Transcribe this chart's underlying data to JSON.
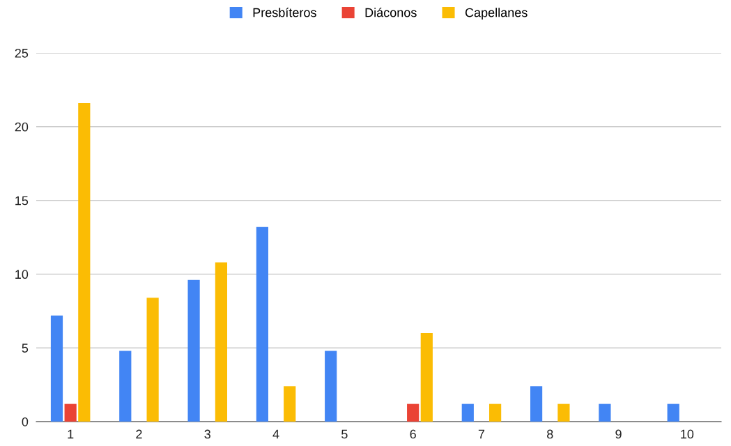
{
  "chart_data": {
    "type": "bar",
    "categories": [
      "1",
      "2",
      "3",
      "4",
      "5",
      "6",
      "7",
      "8",
      "9",
      "10"
    ],
    "series": [
      {
        "name": "Presbíteros",
        "color": "#4285f4",
        "values": [
          7.2,
          4.8,
          9.6,
          13.2,
          4.8,
          null,
          1.2,
          2.4,
          1.2,
          1.2
        ]
      },
      {
        "name": "Diáconos",
        "color": "#ea4335",
        "values": [
          1.2,
          null,
          null,
          null,
          null,
          1.2,
          null,
          null,
          null,
          null
        ]
      },
      {
        "name": "Capellanes",
        "color": "#fbbc04",
        "values": [
          21.6,
          8.4,
          10.8,
          2.4,
          null,
          6.0,
          1.2,
          1.2,
          null,
          null
        ]
      }
    ],
    "ylim": [
      0,
      25
    ],
    "yticks": [
      0,
      5,
      10,
      15,
      20,
      25
    ],
    "grid": "y",
    "legend": "top"
  }
}
